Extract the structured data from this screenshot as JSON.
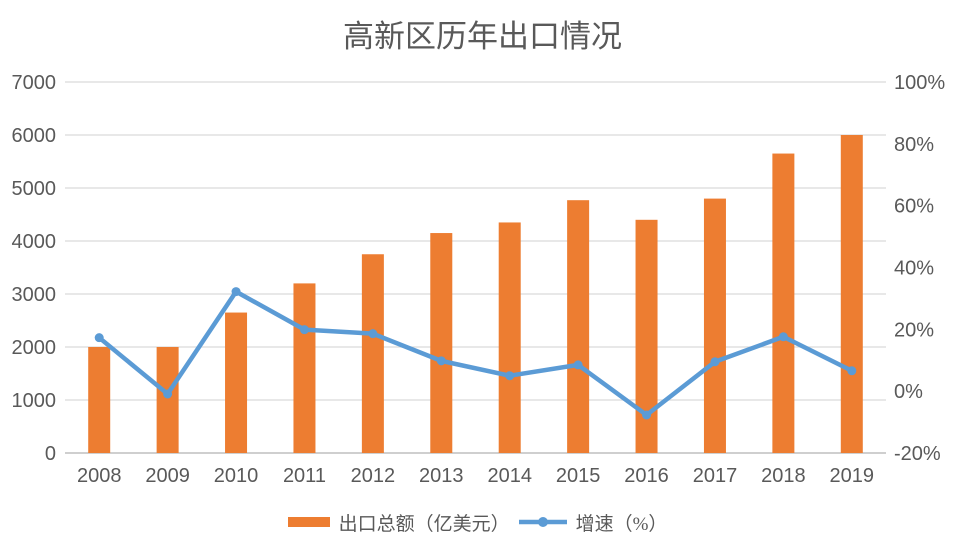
{
  "chart_data": {
    "type": "combo-bar-line",
    "title": "高新区历年出口情况",
    "categories": [
      "2008",
      "2009",
      "2010",
      "2011",
      "2012",
      "2013",
      "2014",
      "2015",
      "2016",
      "2017",
      "2018",
      "2019"
    ],
    "series": [
      {
        "name": "出口总额（亿美元）",
        "type": "bar",
        "axis": "left",
        "color": "#ED7D31",
        "values": [
          2000,
          2000,
          2650,
          3200,
          3750,
          4150,
          4350,
          4770,
          4400,
          4800,
          5650,
          6000
        ]
      },
      {
        "name": "增速（%）",
        "type": "line",
        "axis": "right",
        "color": "#5B9BD5",
        "values": [
          17.3,
          -0.9,
          32.2,
          19.9,
          18.6,
          9.8,
          5.0,
          8.5,
          -7.7,
          9.5,
          17.6,
          6.6
        ]
      }
    ],
    "left_axis": {
      "min": 0,
      "max": 7000,
      "step": 1000,
      "tick_labels": [
        "0",
        "1000",
        "2000",
        "3000",
        "4000",
        "5000",
        "6000",
        "7000"
      ]
    },
    "right_axis": {
      "min": -20,
      "max": 100,
      "step": 20,
      "tick_labels": [
        "-20%",
        "0%",
        "20%",
        "40%",
        "60%",
        "80%",
        "100%"
      ]
    },
    "grid": true,
    "legend_position": "bottom",
    "colors": {
      "bar": "#ED7D31",
      "line": "#5B9BD5",
      "text": "#595959",
      "gridline": "#D9D9D9",
      "axis_line": "#BFBFBF",
      "background": "#FFFFFF"
    }
  }
}
